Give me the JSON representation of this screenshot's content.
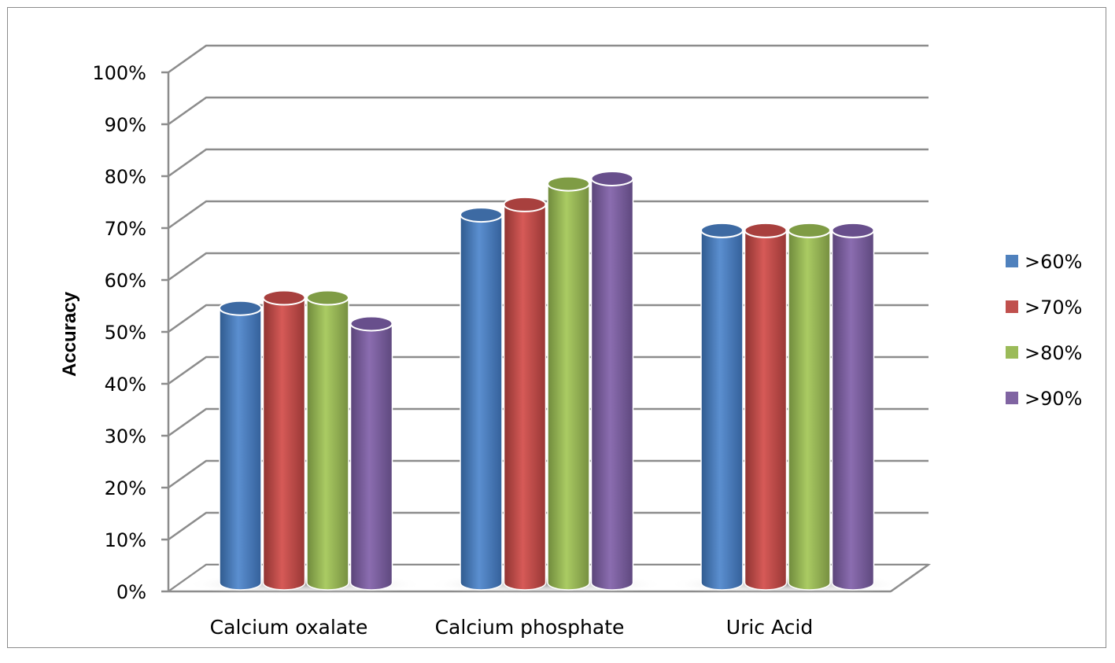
{
  "chart_data": {
    "type": "bar",
    "style": "3d-cylinder",
    "title": "",
    "xlabel": "",
    "ylabel": "Accuracy",
    "ylim": [
      0,
      100
    ],
    "y_ticks": [
      "0%",
      "10%",
      "20%",
      "30%",
      "40%",
      "50%",
      "60%",
      "70%",
      "80%",
      "90%",
      "100%"
    ],
    "categories": [
      "Calcium oxalate",
      "Calcium phosphate",
      "Uric Acid"
    ],
    "series": [
      {
        "name": ">60%",
        "color": "#4F81BD",
        "values": [
          53,
          71,
          68
        ]
      },
      {
        "name": ">70%",
        "color": "#C0504D",
        "values": [
          55,
          73,
          68
        ]
      },
      {
        "name": ">80%",
        "color": "#9BBB59",
        "values": [
          55,
          77,
          68
        ]
      },
      {
        "name": ">90%",
        "color": "#8064A2",
        "values": [
          50,
          78,
          68
        ]
      }
    ],
    "grid": true,
    "legend_position": "right"
  },
  "labels": {
    "ylabel": "Accuracy",
    "cat0": "Calcium oxalate",
    "cat1": "Calcium phosphate",
    "cat2": "Uric Acid",
    "leg0": ">60%",
    "leg1": ">70%",
    "leg2": ">80%",
    "leg3": ">90%",
    "t0": "0%",
    "t1": "10%",
    "t2": "20%",
    "t3": "30%",
    "t4": "40%",
    "t5": "50%",
    "t6": "60%",
    "t7": "70%",
    "t8": "80%",
    "t9": "90%",
    "t10": "100%"
  }
}
